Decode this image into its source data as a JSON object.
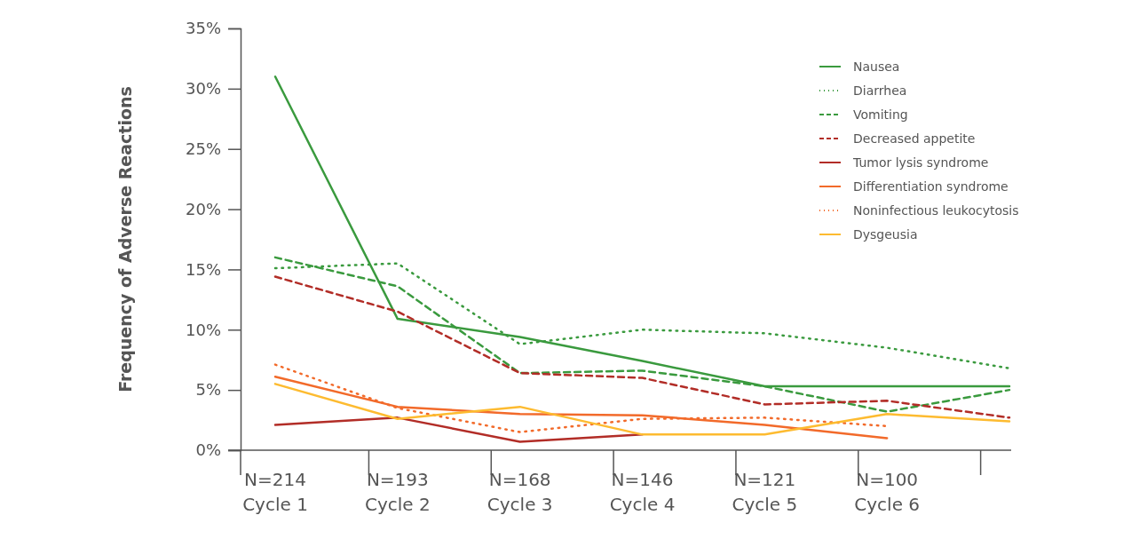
{
  "chart_data": {
    "type": "line",
    "ylabel": "Frequency of Adverse Reactions",
    "categories": [
      "N=214\nCycle 1",
      "N=193\nCycle 2",
      "N=168\nCycle 3",
      "N=146\nCycle 4",
      "N=121\nCycle 5",
      "N=100\nCycle 6",
      null
    ],
    "ylim": [
      0,
      35
    ],
    "yticks": [
      {
        "value": 0,
        "label": "0%"
      },
      {
        "value": 5,
        "label": "5%"
      },
      {
        "value": 10,
        "label": "10%"
      },
      {
        "value": 15,
        "label": "15%"
      },
      {
        "value": 20,
        "label": "20%"
      },
      {
        "value": 25,
        "label": "25%"
      },
      {
        "value": 30,
        "label": "30%"
      },
      {
        "value": 35,
        "label": "35%"
      }
    ],
    "legend": "top right",
    "marker": "none",
    "series": [
      {
        "name": "Nausea",
        "color": "#3a9a3e",
        "line_style": "solid",
        "values": [
          31.0,
          10.9,
          9.4,
          7.4,
          5.3,
          5.3,
          5.3
        ]
      },
      {
        "name": "Diarrhea",
        "color": "#3a9a3e",
        "line_style": "dotted",
        "values": [
          15.1,
          15.5,
          8.8,
          10.0,
          9.7,
          8.5,
          6.8
        ]
      },
      {
        "name": "Vomiting",
        "color": "#3a9a3e",
        "line_style": "dashed",
        "values": [
          16.0,
          13.6,
          6.4,
          6.6,
          5.3,
          3.2,
          5.0
        ]
      },
      {
        "name": "Decreased appetite",
        "color": "#b22d27",
        "line_style": "dashed",
        "values": [
          14.4,
          11.5,
          6.4,
          6.0,
          3.8,
          4.1,
          2.7
        ]
      },
      {
        "name": "Tumor lysis syndrome",
        "color": "#b22d27",
        "line_style": "solid",
        "values": [
          2.1,
          2.7,
          0.7,
          1.3,
          null,
          null,
          null
        ]
      },
      {
        "name": "Differentiation syndrome",
        "color": "#f26a2a",
        "line_style": "solid",
        "values": [
          6.1,
          3.6,
          3.0,
          2.9,
          2.1,
          1.0,
          null
        ]
      },
      {
        "name": "Noninfectious leukocytosis",
        "color": "#f26a2a",
        "line_style": "dotted",
        "values": [
          7.1,
          3.5,
          1.5,
          2.6,
          2.7,
          2.0,
          null
        ]
      },
      {
        "name": "Dysgeusia",
        "color": "#fdbb30",
        "line_style": "solid",
        "values": [
          5.5,
          2.6,
          3.6,
          1.3,
          1.3,
          3.0,
          2.4
        ]
      }
    ]
  }
}
